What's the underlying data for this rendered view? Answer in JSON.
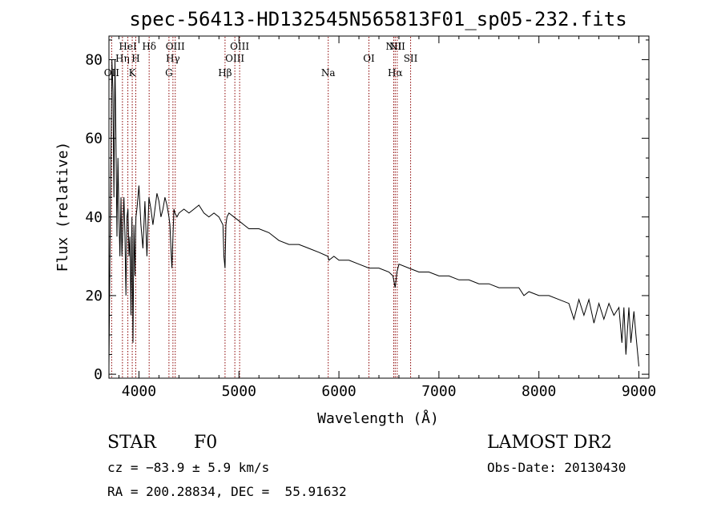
{
  "chart_data": {
    "type": "line",
    "title": "spec-56413-HD132545N565813F01_sp05-232.fits",
    "xlabel": "Wavelength (Å)",
    "ylabel": "Flux (relative)",
    "xlim": [
      3700,
      9100
    ],
    "ylim": [
      -1,
      86
    ],
    "xticks": [
      4000,
      5000,
      6000,
      7000,
      8000,
      9000
    ],
    "yticks": [
      0,
      20,
      40,
      60,
      80
    ],
    "series": [
      {
        "x": [
          3700,
          3710,
          3720,
          3730,
          3740,
          3750,
          3760,
          3770,
          3780,
          3790,
          3800,
          3810,
          3820,
          3830,
          3840,
          3850,
          3860,
          3870,
          3880,
          3890,
          3900,
          3910,
          3920,
          3930,
          3940,
          3950,
          3960,
          3970,
          3980,
          3990,
          4000,
          4020,
          4040,
          4060,
          4080,
          4100,
          4120,
          4140,
          4160,
          4180,
          4200,
          4220,
          4240,
          4260,
          4280,
          4300,
          4310,
          4320,
          4330,
          4340,
          4350,
          4360,
          4380,
          4400,
          4450,
          4500,
          4550,
          4600,
          4650,
          4700,
          4750,
          4800,
          4840,
          4850,
          4861,
          4870,
          4880,
          4900,
          4950,
          5000,
          5050,
          5100,
          5200,
          5300,
          5400,
          5500,
          5600,
          5700,
          5800,
          5890,
          5900,
          5950,
          6000,
          6100,
          6200,
          6300,
          6400,
          6500,
          6540,
          6563,
          6580,
          6600,
          6700,
          6800,
          6900,
          7000,
          7100,
          7200,
          7300,
          7400,
          7500,
          7600,
          7700,
          7800,
          7850,
          7900,
          8000,
          8100,
          8200,
          8300,
          8350,
          8400,
          8450,
          8500,
          8550,
          8600,
          8650,
          8700,
          8750,
          8800,
          8830,
          8850,
          8870,
          8900,
          8920,
          8950,
          8970,
          9000
        ],
        "y": [
          2,
          30,
          55,
          80,
          72,
          45,
          80,
          60,
          35,
          55,
          40,
          30,
          45,
          30,
          38,
          45,
          35,
          20,
          40,
          42,
          30,
          35,
          15,
          40,
          8,
          38,
          25,
          40,
          42,
          45,
          48,
          38,
          32,
          44,
          30,
          45,
          42,
          38,
          42,
          46,
          44,
          40,
          42,
          45,
          43,
          40,
          38,
          32,
          27,
          35,
          42,
          41,
          40,
          41,
          42,
          41,
          42,
          43,
          41,
          40,
          41,
          40,
          38,
          30,
          27,
          38,
          40,
          41,
          40,
          39,
          38,
          37,
          37,
          36,
          34,
          33,
          33,
          32,
          31,
          30,
          29,
          30,
          29,
          29,
          28,
          27,
          27,
          26,
          25,
          22,
          26,
          28,
          27,
          26,
          26,
          25,
          25,
          24,
          24,
          23,
          23,
          22,
          22,
          22,
          20,
          21,
          20,
          20,
          19,
          18,
          14,
          19,
          15,
          19,
          13,
          18,
          14,
          18,
          15,
          17,
          8,
          17,
          5,
          17,
          8,
          16,
          10,
          2
        ]
      }
    ],
    "line_markers": [
      {
        "wl": 3727,
        "label": "OII",
        "row": 3
      },
      {
        "wl": 3835,
        "label": "Hη",
        "row": 2
      },
      {
        "wl": 3889,
        "label": "HeI",
        "row": 1
      },
      {
        "wl": 3933,
        "label": "K",
        "row": 3
      },
      {
        "wl": 3968,
        "label": "H",
        "row": 2
      },
      {
        "wl": 4102,
        "label": "Hδ",
        "row": 1
      },
      {
        "wl": 4300,
        "label": "G",
        "row": 3
      },
      {
        "wl": 4340,
        "label": "Hγ",
        "row": 2
      },
      {
        "wl": 4363,
        "label": "OIII",
        "row": 1
      },
      {
        "wl": 4861,
        "label": "Hβ",
        "row": 3
      },
      {
        "wl": 4959,
        "label": "OIII",
        "row": 2
      },
      {
        "wl": 5007,
        "label": "OIII",
        "row": 1
      },
      {
        "wl": 5893,
        "label": "Na",
        "row": 3
      },
      {
        "wl": 6300,
        "label": "OI",
        "row": 2
      },
      {
        "wl": 6548,
        "label": "NII",
        "row": 1
      },
      {
        "wl": 6563,
        "label": "Hα",
        "row": 3
      },
      {
        "wl": 6583,
        "label": "NII",
        "row": 1
      },
      {
        "wl": 6717,
        "label": "SII",
        "row": 2
      }
    ],
    "marker_style": "dotted",
    "marker_color": "#8b0000",
    "grid": false
  },
  "info": {
    "object_class": "STAR",
    "subclass": "F0",
    "survey": "LAMOST DR2",
    "cz": "cz = −83.9 ± 5.9 km/s",
    "obs_date": "Obs-Date: 20130430",
    "coords": "RA = 200.28834, DEC =  55.91632"
  }
}
